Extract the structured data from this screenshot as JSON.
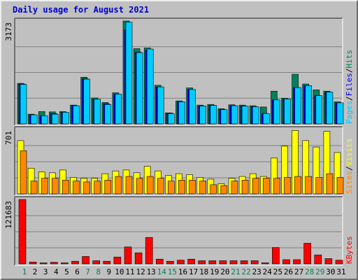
{
  "title": "Daily usage for August 2021",
  "chart_data": [
    {
      "type": "bar",
      "panel": "hits-files-pages",
      "categories": [
        "1",
        "2",
        "3",
        "4",
        "5",
        "6",
        "7",
        "8",
        "9",
        "10",
        "11",
        "12",
        "13",
        "14",
        "15",
        "16",
        "17",
        "18",
        "19",
        "20",
        "21",
        "22",
        "23",
        "24",
        "25",
        "26",
        "27",
        "28",
        "29",
        "30",
        "31"
      ],
      "weekend_days": [
        "1",
        "7",
        "8",
        "14",
        "15",
        "21",
        "22",
        "28",
        "29"
      ],
      "ymax_label": "3173",
      "ylim": [
        0,
        3173
      ],
      "grid": true,
      "series": [
        {
          "name": "Hits",
          "color": "#00805c",
          "values": [
            1250,
            300,
            380,
            370,
            380,
            580,
            1440,
            800,
            660,
            960,
            3173,
            2320,
            2340,
            1190,
            340,
            710,
            1110,
            580,
            600,
            470,
            590,
            580,
            560,
            520,
            1010,
            790,
            1530,
            1230,
            1050,
            1010,
            680
          ]
        },
        {
          "name": "Files",
          "color": "#0000ff",
          "values": [
            1230,
            280,
            250,
            320,
            360,
            560,
            1390,
            760,
            620,
            920,
            2900,
            2210,
            2270,
            1140,
            330,
            680,
            1060,
            550,
            570,
            440,
            560,
            550,
            530,
            320,
            740,
            770,
            1120,
            1180,
            870,
            980,
            650
          ]
        },
        {
          "name": "Pages",
          "color": "#00ccff",
          "values": [
            1220,
            280,
            250,
            300,
            360,
            560,
            1380,
            760,
            600,
            920,
            3140,
            2200,
            2310,
            1140,
            320,
            680,
            1060,
            550,
            570,
            440,
            560,
            550,
            530,
            320,
            740,
            770,
            1120,
            1180,
            870,
            980,
            650
          ]
        }
      ],
      "legend": [
        "Pages",
        "Files",
        "Hits"
      ]
    },
    {
      "type": "bar",
      "panel": "visits-sites",
      "categories": [
        "1",
        "2",
        "3",
        "4",
        "5",
        "6",
        "7",
        "8",
        "9",
        "10",
        "11",
        "12",
        "13",
        "14",
        "15",
        "16",
        "17",
        "18",
        "19",
        "20",
        "21",
        "22",
        "23",
        "24",
        "25",
        "26",
        "27",
        "28",
        "29",
        "30",
        "31"
      ],
      "ymax_label": "701",
      "ylim": [
        0,
        701
      ],
      "grid": true,
      "series": [
        {
          "name": "Visits",
          "color": "#ffff00",
          "values": [
            580,
            280,
            240,
            230,
            260,
            180,
            170,
            170,
            220,
            250,
            260,
            230,
            300,
            250,
            200,
            220,
            210,
            180,
            160,
            110,
            170,
            190,
            220,
            190,
            390,
            520,
            690,
            580,
            510,
            680,
            450
          ]
        },
        {
          "name": "Sites",
          "color": "#ff8800",
          "values": [
            470,
            140,
            170,
            170,
            150,
            140,
            130,
            140,
            150,
            190,
            190,
            170,
            190,
            170,
            140,
            150,
            150,
            140,
            100,
            90,
            140,
            150,
            170,
            170,
            170,
            180,
            190,
            190,
            180,
            220,
            180
          ]
        }
      ],
      "legend": [
        "Sites",
        "Visits"
      ]
    },
    {
      "type": "bar",
      "panel": "kbytes",
      "categories": [
        "1",
        "2",
        "3",
        "4",
        "5",
        "6",
        "7",
        "8",
        "9",
        "10",
        "11",
        "12",
        "13",
        "14",
        "15",
        "16",
        "17",
        "18",
        "19",
        "20",
        "21",
        "22",
        "23",
        "24",
        "25",
        "26",
        "27",
        "28",
        "29",
        "30",
        "31"
      ],
      "ymax_label": "121683",
      "ylim": [
        0,
        121683
      ],
      "grid": true,
      "series": [
        {
          "name": "KBytes",
          "color": "#ff0000",
          "values": [
            121683,
            3500,
            2000,
            3000,
            2000,
            5000,
            14000,
            6000,
            5000,
            13000,
            32000,
            21000,
            50000,
            9000,
            5000,
            7000,
            9000,
            6000,
            6000,
            6000,
            6000,
            6000,
            6000,
            2000,
            31000,
            8000,
            8000,
            39000,
            17000,
            10000,
            7000
          ]
        }
      ],
      "legend": [
        "KBytes"
      ]
    }
  ]
}
